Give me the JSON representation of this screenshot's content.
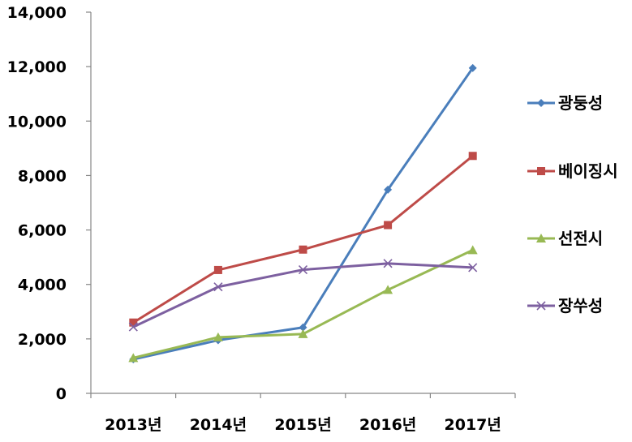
{
  "chart_data": {
    "type": "line",
    "title": "",
    "xlabel": "",
    "ylabel": "",
    "categories": [
      "2013년",
      "2014년",
      "2015년",
      "2016년",
      "2017년"
    ],
    "ylim": [
      0,
      14000
    ],
    "yticks": [
      0,
      2000,
      4000,
      6000,
      8000,
      10000,
      12000,
      14000
    ],
    "ytick_labels": [
      "0",
      "2,000",
      "4,000",
      "6,000",
      "8,000",
      "10,000",
      "12,000",
      "14,000"
    ],
    "grid": false,
    "legend_position": "right",
    "series": [
      {
        "name": "광둥성",
        "values": [
          1250,
          1950,
          2420,
          7480,
          11950
        ],
        "color": "#4a7ebb",
        "marker": "diamond"
      },
      {
        "name": "베이징시",
        "values": [
          2600,
          4530,
          5280,
          6180,
          8720
        ],
        "color": "#be4b48",
        "marker": "square"
      },
      {
        "name": "선전시",
        "values": [
          1300,
          2060,
          2180,
          3800,
          5260
        ],
        "color": "#98b954",
        "marker": "triangle"
      },
      {
        "name": "장쑤성",
        "values": [
          2440,
          3910,
          4540,
          4770,
          4620
        ],
        "color": "#7d60a0",
        "marker": "x"
      }
    ]
  }
}
